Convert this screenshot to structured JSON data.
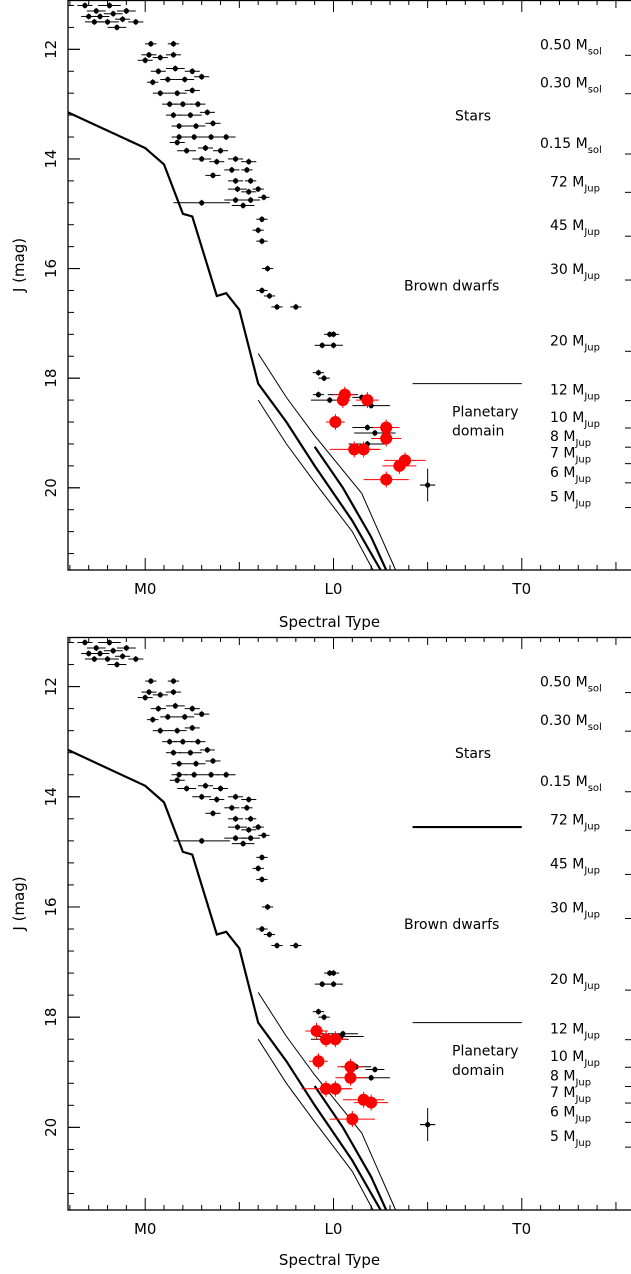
{
  "chart_data": [
    {
      "type": "scatter",
      "panel": "top",
      "xlabel": "Spectral Type",
      "ylabel": "J (mag)",
      "x_ticks": [
        {
          "value": 0,
          "label": "M0"
        },
        {
          "value": 10,
          "label": "L0"
        },
        {
          "value": 20,
          "label": "T0"
        }
      ],
      "y_ticks": [
        12,
        14,
        16,
        18,
        20
      ],
      "xlim": [
        -4.1,
        25.8
      ],
      "ylim": [
        11.1,
        21.5
      ],
      "y_inverted": true,
      "regions": {
        "stars": "Stars",
        "brown_dwarfs": "Brown dwarfs",
        "planetary_line1": "Planetary",
        "planetary_line2": "domain"
      },
      "mass_labels": [
        {
          "j": 12.0,
          "main": "0.50 M",
          "sub": "sol"
        },
        {
          "j": 12.7,
          "main": "0.30 M",
          "sub": "sol"
        },
        {
          "j": 13.8,
          "main": "0.15 M",
          "sub": "sol"
        },
        {
          "j": 14.5,
          "main": "72 M",
          "sub": "Jup"
        },
        {
          "j": 15.3,
          "main": "45 M",
          "sub": "Jup"
        },
        {
          "j": 16.1,
          "main": "30 M",
          "sub": "Jup"
        },
        {
          "j": 17.4,
          "main": "20 M",
          "sub": "Jup"
        },
        {
          "j": 18.3,
          "main": "12 M",
          "sub": "Jup"
        },
        {
          "j": 18.8,
          "main": "10 M",
          "sub": "Jup"
        },
        {
          "j": 19.15,
          "main": "8 M",
          "sub": "Jup"
        },
        {
          "j": 19.45,
          "main": "7 M",
          "sub": "Jup"
        },
        {
          "j": 19.8,
          "main": "6 M",
          "sub": "Jup"
        },
        {
          "j": 20.25,
          "main": "5 M",
          "sub": "Jup"
        }
      ],
      "boundary_line": {
        "x": [
          14.2,
          20.0
        ],
        "j": 18.1
      },
      "black_points": [
        [
          -3.2,
          11.2,
          0.4
        ],
        [
          -2.6,
          11.3,
          0.5
        ],
        [
          -1.9,
          11.2,
          0.6
        ],
        [
          -3.0,
          11.4,
          0.4
        ],
        [
          -2.4,
          11.4,
          0.5
        ],
        [
          -1.7,
          11.35,
          0.5
        ],
        [
          -1.0,
          11.3,
          0.5
        ],
        [
          -2.7,
          11.5,
          0.5
        ],
        [
          -2.0,
          11.5,
          0.6
        ],
        [
          -1.2,
          11.45,
          0.4
        ],
        [
          -0.5,
          11.5,
          0.4
        ],
        [
          -1.5,
          11.6,
          0.5
        ],
        [
          0.3,
          11.9,
          0.3
        ],
        [
          1.5,
          11.9,
          0.3
        ],
        [
          0.2,
          12.1,
          0.4
        ],
        [
          0.8,
          12.15,
          0.4
        ],
        [
          1.5,
          12.1,
          0.4
        ],
        [
          0.0,
          12.2,
          0.4
        ],
        [
          0.7,
          12.4,
          0.4
        ],
        [
          1.6,
          12.35,
          0.5
        ],
        [
          2.5,
          12.4,
          0.4
        ],
        [
          0.4,
          12.6,
          0.3
        ],
        [
          1.2,
          12.55,
          0.4
        ],
        [
          2.1,
          12.55,
          0.5
        ],
        [
          3.0,
          12.5,
          0.4
        ],
        [
          0.8,
          12.8,
          0.4
        ],
        [
          1.7,
          12.8,
          0.5
        ],
        [
          2.5,
          12.75,
          0.4
        ],
        [
          1.3,
          13.0,
          0.4
        ],
        [
          2.0,
          13.0,
          0.5
        ],
        [
          2.8,
          13.0,
          0.4
        ],
        [
          1.5,
          13.2,
          0.4
        ],
        [
          2.4,
          13.2,
          0.6
        ],
        [
          3.3,
          13.15,
          0.4
        ],
        [
          1.8,
          13.4,
          0.4
        ],
        [
          2.7,
          13.4,
          0.5
        ],
        [
          3.6,
          13.35,
          0.4
        ],
        [
          1.8,
          13.6,
          0.4
        ],
        [
          2.6,
          13.6,
          0.5
        ],
        [
          3.5,
          13.6,
          0.4
        ],
        [
          4.3,
          13.6,
          0.5
        ],
        [
          1.7,
          13.7,
          0.4
        ],
        [
          2.2,
          13.85,
          0.5
        ],
        [
          3.2,
          13.8,
          0.4
        ],
        [
          4.0,
          13.85,
          0.4
        ],
        [
          4.8,
          14.0,
          0.4
        ],
        [
          3.0,
          14.0,
          0.5
        ],
        [
          3.8,
          14.05,
          0.4
        ],
        [
          5.5,
          14.05,
          0.4
        ],
        [
          4.6,
          14.2,
          0.4
        ],
        [
          5.4,
          14.2,
          0.3
        ],
        [
          3.6,
          14.3,
          0.4
        ],
        [
          4.8,
          14.4,
          0.4
        ],
        [
          5.6,
          14.4,
          0.3
        ],
        [
          4.9,
          14.55,
          0.5
        ],
        [
          5.5,
          14.6,
          0.4
        ],
        [
          6.0,
          14.55,
          0.3
        ],
        [
          4.8,
          14.75,
          0.6
        ],
        [
          5.6,
          14.75,
          0.5
        ],
        [
          6.3,
          14.7,
          0.3
        ],
        [
          5.2,
          14.85,
          0.6
        ],
        [
          3.0,
          14.8,
          1.5
        ],
        [
          6.2,
          15.1,
          0.3
        ],
        [
          6.0,
          15.3,
          0.3
        ],
        [
          6.2,
          15.5,
          0.3
        ],
        [
          6.5,
          16.0,
          0.3
        ],
        [
          6.2,
          16.4,
          0.3
        ],
        [
          6.6,
          16.5,
          0.3
        ],
        [
          7.0,
          16.7,
          0.3
        ],
        [
          8.0,
          16.7,
          0.3
        ],
        [
          9.8,
          17.2,
          0.3
        ],
        [
          10.0,
          17.2,
          0.3
        ],
        [
          9.4,
          17.4,
          0.4
        ],
        [
          10.0,
          17.4,
          0.5
        ],
        [
          9.2,
          17.9,
          0.3
        ],
        [
          9.5,
          18.0,
          0.3
        ],
        [
          9.2,
          18.3,
          0.3
        ],
        [
          10.5,
          18.3,
          0.8
        ],
        [
          9.8,
          18.4,
          1.0
        ],
        [
          11.5,
          18.35,
          0.5
        ],
        [
          12.0,
          18.5,
          1.0
        ],
        [
          11.8,
          18.9,
          0.8
        ],
        [
          12.2,
          19.0,
          1.1
        ],
        [
          11.8,
          19.2,
          1.0
        ],
        [
          15.0,
          19.95,
          0.4
        ]
      ],
      "red_points": [
        [
          10.6,
          18.3,
          0.6
        ],
        [
          10.5,
          18.4,
          0.4
        ],
        [
          11.8,
          18.4,
          0.6
        ],
        [
          10.1,
          18.8,
          0.5
        ],
        [
          12.8,
          18.9,
          0.7
        ],
        [
          12.8,
          19.1,
          0.8
        ],
        [
          11.1,
          19.3,
          1.3
        ],
        [
          11.6,
          19.3,
          0.9
        ],
        [
          13.8,
          19.5,
          1.1
        ],
        [
          13.5,
          19.6,
          0.9
        ],
        [
          12.8,
          19.85,
          1.2
        ]
      ],
      "cross_point": {
        "x": 15.0,
        "j": 19.95,
        "dx": 0.4,
        "dy": 0.3
      }
    },
    {
      "type": "scatter",
      "panel": "bottom",
      "xlabel": "Spectral Type",
      "ylabel": "J (mag)",
      "x_ticks": [
        {
          "value": 0,
          "label": "M0"
        },
        {
          "value": 10,
          "label": "L0"
        },
        {
          "value": 20,
          "label": "T0"
        }
      ],
      "y_ticks": [
        12,
        14,
        16,
        18,
        20
      ],
      "xlim": [
        -4.1,
        25.8
      ],
      "ylim": [
        11.1,
        21.5
      ],
      "y_inverted": true,
      "regions": {
        "stars": "Stars",
        "brown_dwarfs": "Brown dwarfs",
        "planetary_line1": "Planetary",
        "planetary_line2": "domain"
      },
      "mass_labels": [
        {
          "j": 12.0,
          "main": "0.50 M",
          "sub": "sol"
        },
        {
          "j": 12.7,
          "main": "0.30 M",
          "sub": "sol"
        },
        {
          "j": 13.8,
          "main": "0.15 M",
          "sub": "sol"
        },
        {
          "j": 14.5,
          "main": "72 M",
          "sub": "Jup"
        },
        {
          "j": 15.3,
          "main": "45 M",
          "sub": "Jup"
        },
        {
          "j": 16.1,
          "main": "30 M",
          "sub": "Jup"
        },
        {
          "j": 17.4,
          "main": "20 M",
          "sub": "Jup"
        },
        {
          "j": 18.3,
          "main": "12 M",
          "sub": "Jup"
        },
        {
          "j": 18.8,
          "main": "10 M",
          "sub": "Jup"
        },
        {
          "j": 19.15,
          "main": "8 M",
          "sub": "Jup"
        },
        {
          "j": 19.45,
          "main": "7 M",
          "sub": "Jup"
        },
        {
          "j": 19.8,
          "main": "6 M",
          "sub": "Jup"
        },
        {
          "j": 20.25,
          "main": "5 M",
          "sub": "Jup"
        }
      ],
      "boundary_line": {
        "x": [
          14.2,
          20.0
        ],
        "j": 18.1
      },
      "thick_line": {
        "x": [
          14.2,
          20.0
        ],
        "j": 14.55
      },
      "black_points": [
        [
          -3.2,
          11.2,
          0.4
        ],
        [
          -2.6,
          11.3,
          0.5
        ],
        [
          -1.9,
          11.2,
          0.6
        ],
        [
          -3.0,
          11.4,
          0.4
        ],
        [
          -2.4,
          11.4,
          0.5
        ],
        [
          -1.7,
          11.35,
          0.5
        ],
        [
          -1.0,
          11.3,
          0.5
        ],
        [
          -2.7,
          11.5,
          0.5
        ],
        [
          -2.0,
          11.5,
          0.6
        ],
        [
          -1.2,
          11.45,
          0.4
        ],
        [
          -0.5,
          11.5,
          0.4
        ],
        [
          -1.5,
          11.6,
          0.5
        ],
        [
          0.3,
          11.9,
          0.3
        ],
        [
          1.5,
          11.9,
          0.3
        ],
        [
          0.2,
          12.1,
          0.4
        ],
        [
          0.8,
          12.15,
          0.4
        ],
        [
          1.5,
          12.1,
          0.4
        ],
        [
          0.0,
          12.2,
          0.4
        ],
        [
          0.7,
          12.4,
          0.4
        ],
        [
          1.6,
          12.35,
          0.5
        ],
        [
          2.5,
          12.4,
          0.4
        ],
        [
          0.4,
          12.6,
          0.3
        ],
        [
          1.2,
          12.55,
          0.4
        ],
        [
          2.1,
          12.55,
          0.5
        ],
        [
          3.0,
          12.5,
          0.4
        ],
        [
          0.8,
          12.8,
          0.4
        ],
        [
          1.7,
          12.8,
          0.5
        ],
        [
          2.5,
          12.75,
          0.4
        ],
        [
          1.3,
          13.0,
          0.4
        ],
        [
          2.0,
          13.0,
          0.5
        ],
        [
          2.8,
          13.0,
          0.4
        ],
        [
          1.5,
          13.2,
          0.4
        ],
        [
          2.4,
          13.2,
          0.6
        ],
        [
          3.3,
          13.15,
          0.4
        ],
        [
          1.8,
          13.4,
          0.4
        ],
        [
          2.7,
          13.4,
          0.5
        ],
        [
          3.6,
          13.35,
          0.4
        ],
        [
          1.8,
          13.6,
          0.4
        ],
        [
          2.6,
          13.6,
          0.5
        ],
        [
          3.5,
          13.6,
          0.4
        ],
        [
          4.3,
          13.6,
          0.5
        ],
        [
          1.7,
          13.7,
          0.4
        ],
        [
          2.2,
          13.85,
          0.5
        ],
        [
          3.2,
          13.8,
          0.4
        ],
        [
          4.0,
          13.85,
          0.4
        ],
        [
          4.8,
          14.0,
          0.4
        ],
        [
          3.0,
          14.0,
          0.5
        ],
        [
          3.8,
          14.05,
          0.4
        ],
        [
          5.5,
          14.05,
          0.4
        ],
        [
          4.6,
          14.2,
          0.4
        ],
        [
          5.4,
          14.2,
          0.3
        ],
        [
          3.6,
          14.3,
          0.4
        ],
        [
          4.8,
          14.4,
          0.4
        ],
        [
          5.6,
          14.4,
          0.3
        ],
        [
          4.9,
          14.55,
          0.5
        ],
        [
          5.5,
          14.6,
          0.4
        ],
        [
          6.0,
          14.55,
          0.3
        ],
        [
          4.8,
          14.75,
          0.6
        ],
        [
          5.6,
          14.75,
          0.5
        ],
        [
          6.3,
          14.7,
          0.3
        ],
        [
          5.2,
          14.85,
          0.6
        ],
        [
          3.0,
          14.8,
          1.5
        ],
        [
          6.2,
          15.1,
          0.3
        ],
        [
          6.0,
          15.3,
          0.3
        ],
        [
          6.2,
          15.5,
          0.3
        ],
        [
          6.5,
          16.0,
          0.3
        ],
        [
          6.2,
          16.4,
          0.3
        ],
        [
          6.6,
          16.5,
          0.3
        ],
        [
          7.0,
          16.7,
          0.3
        ],
        [
          8.0,
          16.7,
          0.3
        ],
        [
          9.8,
          17.2,
          0.3
        ],
        [
          10.0,
          17.2,
          0.3
        ],
        [
          9.4,
          17.4,
          0.4
        ],
        [
          10.0,
          17.4,
          0.5
        ],
        [
          9.2,
          17.9,
          0.3
        ],
        [
          9.5,
          18.0,
          0.3
        ],
        [
          9.2,
          18.3,
          0.3
        ],
        [
          10.5,
          18.3,
          0.8
        ],
        [
          9.8,
          18.4,
          1.0
        ],
        [
          10.4,
          18.35,
          1.2
        ],
        [
          11.2,
          18.9,
          0.8
        ],
        [
          12.2,
          18.95,
          0.5
        ],
        [
          12.0,
          19.1,
          1.0
        ],
        [
          15.0,
          19.95,
          0.4
        ]
      ],
      "red_points": [
        [
          9.1,
          18.25,
          0.6
        ],
        [
          9.6,
          18.4,
          0.4
        ],
        [
          10.1,
          18.4,
          0.6
        ],
        [
          9.2,
          18.8,
          0.5
        ],
        [
          10.9,
          18.9,
          0.7
        ],
        [
          10.9,
          19.1,
          0.8
        ],
        [
          9.6,
          19.3,
          1.3
        ],
        [
          10.1,
          19.3,
          0.9
        ],
        [
          11.6,
          19.5,
          1.1
        ],
        [
          12.0,
          19.55,
          0.9
        ],
        [
          11.0,
          19.85,
          1.2
        ]
      ],
      "cross_point": {
        "x": 15.0,
        "j": 19.95,
        "dx": 0.4,
        "dy": 0.3
      }
    }
  ],
  "colors": {
    "red": "#ff0000",
    "black": "#000000",
    "background": "#ffffff"
  }
}
